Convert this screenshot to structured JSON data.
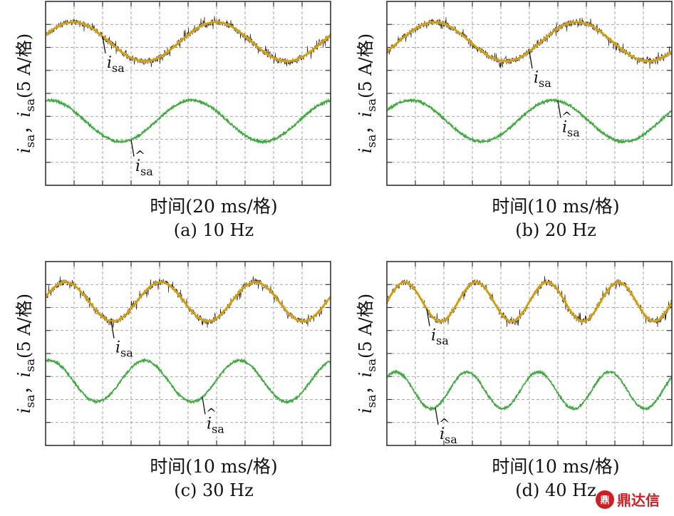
{
  "figure": {
    "watermark": "鼎达信",
    "watermark_logo": "鼎",
    "colors": {
      "frame": "#333333",
      "grid": "#8a8a8a",
      "measured_trace": "#3a2a14",
      "measured_fit": "#e8b520",
      "estimated_trace": "#3fa83f"
    }
  },
  "chart_data": [
    {
      "type": "line",
      "panel": "a",
      "caption_label": "(a)",
      "caption_freq": "10 Hz",
      "xlabel": "时间(20 ms/格)",
      "ylabel_main": "i",
      "ylabel_sub": "sa",
      "ylabel_comma": "，",
      "ylabel_hat_main": "i",
      "ylabel_hat_sub": "sa",
      "ylabel_unit": "(5 A/格)",
      "x_divisions": 10,
      "y_divisions": 8,
      "frequency_hz": 10,
      "x_div_ms": 20,
      "series": [
        {
          "name": "i_sa",
          "annot_main": "i",
          "annot_sub": "sa",
          "hat": false,
          "center_div": 1.75,
          "amplitude_div": 0.85,
          "phase_deg": 20,
          "noise": true,
          "annot_at_div": 2.0
        },
        {
          "name": "î_sa",
          "annot_main": "i",
          "annot_sub": "sa",
          "hat": true,
          "center_div": 5.2,
          "amplitude_div": 0.9,
          "phase_deg": 80,
          "noise": false,
          "annot_at_div": 3.0
        }
      ]
    },
    {
      "type": "line",
      "panel": "b",
      "caption_label": "(b)",
      "caption_freq": "20 Hz",
      "xlabel": "时间(10 ms/格)",
      "ylabel_main": "i",
      "ylabel_sub": "sa",
      "ylabel_comma": "，",
      "ylabel_hat_main": "i",
      "ylabel_hat_sub": "sa",
      "ylabel_unit": "(5 A/格)",
      "x_divisions": 10,
      "y_divisions": 8,
      "frequency_hz": 20,
      "x_div_ms": 10,
      "series": [
        {
          "name": "i_sa",
          "annot_main": "i",
          "annot_sub": "sa",
          "hat": false,
          "center_div": 1.75,
          "amplitude_div": 0.85,
          "phase_deg": 330,
          "noise": true,
          "annot_at_div": 5.0
        },
        {
          "name": "î_sa",
          "annot_main": "i",
          "annot_sub": "sa",
          "hat": true,
          "center_div": 5.2,
          "amplitude_div": 0.9,
          "phase_deg": 30,
          "noise": false,
          "annot_at_div": 6.0
        }
      ]
    },
    {
      "type": "line",
      "panel": "c",
      "caption_label": "(c)",
      "caption_freq": "30 Hz",
      "xlabel": "时间(10 ms/格)",
      "ylabel_main": "i",
      "ylabel_sub": "sa",
      "ylabel_comma": "，",
      "ylabel_hat_main": "i",
      "ylabel_hat_sub": "sa",
      "ylabel_unit": "(5 A/格)",
      "x_divisions": 10,
      "y_divisions": 8,
      "frequency_hz": 30,
      "x_div_ms": 10,
      "series": [
        {
          "name": "i_sa",
          "annot_main": "i",
          "annot_sub": "sa",
          "hat": false,
          "center_div": 1.75,
          "amplitude_div": 0.85,
          "phase_deg": 15,
          "noise": true,
          "annot_at_div": 2.3
        },
        {
          "name": "î_sa",
          "annot_main": "i",
          "annot_sub": "sa",
          "hat": true,
          "center_div": 5.2,
          "amplitude_div": 0.9,
          "phase_deg": 75,
          "noise": false,
          "annot_at_div": 5.5
        }
      ]
    },
    {
      "type": "line",
      "panel": "d",
      "caption_label": "(d)",
      "caption_freq": "40 Hz",
      "xlabel": "时间(10 ms/格)",
      "ylabel_main": "i",
      "ylabel_sub": "sa",
      "ylabel_comma": "，",
      "ylabel_hat_main": "i",
      "ylabel_hat_sub": "sa",
      "ylabel_unit": "(5 A/格)",
      "x_divisions": 10,
      "y_divisions": 8,
      "frequency_hz": 40,
      "x_div_ms": 10,
      "series": [
        {
          "name": "i_sa",
          "annot_main": "i",
          "annot_sub": "sa",
          "hat": false,
          "center_div": 1.75,
          "amplitude_div": 0.85,
          "phase_deg": 0,
          "noise": true,
          "annot_at_div": 1.4
        },
        {
          "name": "î_sa",
          "annot_main": "i",
          "annot_sub": "sa",
          "hat": true,
          "center_div": 5.6,
          "amplitude_div": 0.8,
          "phase_deg": 45,
          "noise": false,
          "annot_at_div": 1.7
        }
      ]
    }
  ]
}
